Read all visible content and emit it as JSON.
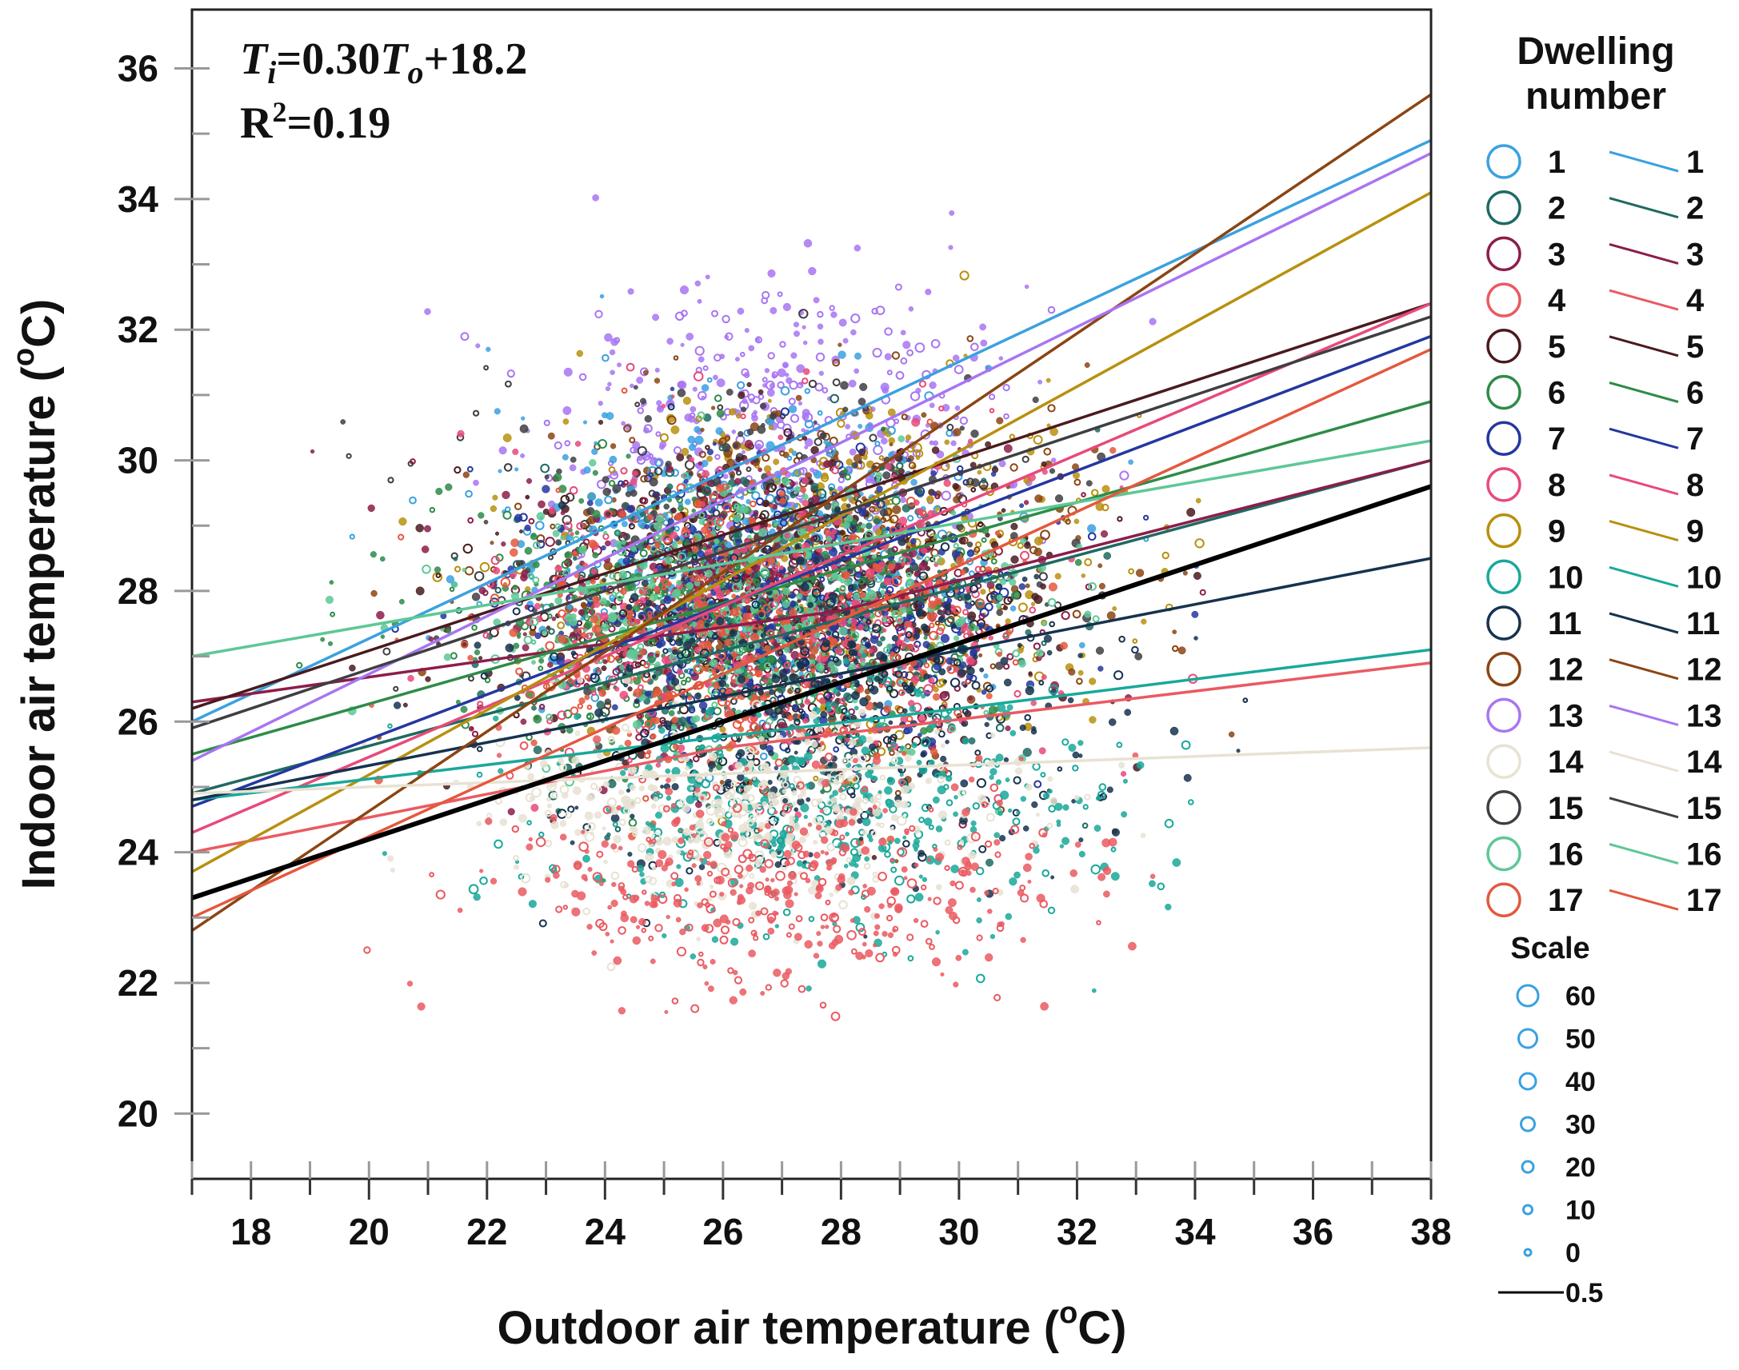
{
  "chart_data": {
    "type": "scatter",
    "title": "",
    "xlabel": "Outdoor air temperature (°C)",
    "xlabel_main": "Outdoor air temperature (",
    "xlabel_unit": "o",
    "xlabel_end": "C)",
    "ylabel": "Indoor air temperature (°C)",
    "ylabel_main": "Indoor air temperature (",
    "ylabel_unit": "o",
    "ylabel_end": "C)",
    "xlim": [
      17,
      38
    ],
    "ylim": [
      19,
      36.9
    ],
    "x_ticks": [
      18,
      20,
      22,
      24,
      26,
      28,
      30,
      32,
      34,
      36,
      38
    ],
    "y_ticks": [
      20,
      22,
      24,
      26,
      28,
      30,
      32,
      34,
      36
    ],
    "annotation": {
      "eq_T": "T",
      "eq_i": "i",
      "eq_mid": "=0.30",
      "eq_To": "T",
      "eq_o": "o",
      "eq_end": "+18.2",
      "r2_R": "R",
      "r2_sup": "2",
      "r2_val": "=0.19",
      "equation": "Ti=0.30To+18.2",
      "r_squared": "R2=0.19"
    },
    "overall_fit": {
      "slope": 0.3,
      "intercept": 18.2,
      "x_range": [
        17,
        38
      ],
      "color": "#000000"
    },
    "legend_title_line1": "Dwelling",
    "legend_title_line2": "number",
    "series": [
      {
        "name": "1",
        "color": "#3aa1e0",
        "fit": [
          [
            17,
            26.0
          ],
          [
            38,
            34.9
          ]
        ],
        "cloud": {
          "cx": 26.5,
          "cy": 28.6,
          "sx": 4.0,
          "sy": 1.8
        }
      },
      {
        "name": "2",
        "color": "#1e6a62",
        "fit": [
          [
            17,
            24.9
          ],
          [
            38,
            30.0
          ]
        ],
        "cloud": {
          "cx": 27.0,
          "cy": 27.4,
          "sx": 4.0,
          "sy": 2.0
        }
      },
      {
        "name": "3",
        "color": "#8c1d4a",
        "fit": [
          [
            17,
            26.3
          ],
          [
            28,
            27.7
          ],
          [
            38,
            30.0
          ]
        ],
        "cloud": {
          "cx": 26.5,
          "cy": 27.8,
          "sx": 4.2,
          "sy": 1.8
        }
      },
      {
        "name": "4",
        "color": "#ea5a62",
        "fit": [
          [
            17,
            24.0
          ],
          [
            26,
            25.6
          ],
          [
            38,
            26.9
          ]
        ],
        "cloud": {
          "cx": 27.0,
          "cy": 23.5,
          "sx": 4.5,
          "sy": 1.4
        }
      },
      {
        "name": "5",
        "color": "#4a1a1e",
        "fit": [
          [
            17,
            26.2
          ],
          [
            38,
            32.4
          ]
        ],
        "cloud": {
          "cx": 27.0,
          "cy": 27.8,
          "sx": 4.2,
          "sy": 2.0
        }
      },
      {
        "name": "6",
        "color": "#2e8b48",
        "fit": [
          [
            17,
            25.5
          ],
          [
            38,
            30.9
          ]
        ],
        "cloud": {
          "cx": 25.5,
          "cy": 27.6,
          "sx": 4.0,
          "sy": 1.9
        }
      },
      {
        "name": "7",
        "color": "#2437a0",
        "fit": [
          [
            17,
            24.7
          ],
          [
            38,
            31.9
          ]
        ],
        "cloud": {
          "cx": 27.0,
          "cy": 27.8,
          "sx": 4.0,
          "sy": 1.9
        }
      },
      {
        "name": "8",
        "color": "#e84a7a",
        "fit": [
          [
            17,
            24.3
          ],
          [
            38,
            32.4
          ]
        ],
        "cloud": {
          "cx": 27.0,
          "cy": 27.6,
          "sx": 4.0,
          "sy": 1.9
        }
      },
      {
        "name": "9",
        "color": "#b8900e",
        "fit": [
          [
            17,
            23.7
          ],
          [
            38,
            34.1
          ]
        ],
        "cloud": {
          "cx": 28.0,
          "cy": 28.6,
          "sx": 4.5,
          "sy": 2.2
        }
      },
      {
        "name": "10",
        "color": "#1aa89a",
        "fit": [
          [
            17,
            24.8
          ],
          [
            30,
            26.2
          ],
          [
            38,
            27.1
          ]
        ],
        "cloud": {
          "cx": 28.0,
          "cy": 24.6,
          "sx": 4.5,
          "sy": 1.6
        }
      },
      {
        "name": "11",
        "color": "#16324f",
        "fit": [
          [
            17,
            24.8
          ],
          [
            38,
            28.5
          ]
        ],
        "cloud": {
          "cx": 28.0,
          "cy": 26.2,
          "sx": 4.5,
          "sy": 2.0
        }
      },
      {
        "name": "12",
        "color": "#8b4513",
        "fit": [
          [
            17,
            22.8
          ],
          [
            38,
            35.6
          ]
        ],
        "cloud": {
          "cx": 27.5,
          "cy": 28.3,
          "sx": 4.5,
          "sy": 2.3
        }
      },
      {
        "name": "13",
        "color": "#a875f2",
        "fit": [
          [
            17,
            25.4
          ],
          [
            38,
            34.7
          ]
        ],
        "cloud": {
          "cx": 27.0,
          "cy": 30.6,
          "sx": 3.8,
          "sy": 1.9
        }
      },
      {
        "name": "14",
        "color": "#e8e2d2",
        "fit": [
          [
            17,
            24.9
          ],
          [
            38,
            25.6
          ]
        ],
        "cloud": {
          "cx": 26.5,
          "cy": 24.7,
          "sx": 4.0,
          "sy": 1.1
        }
      },
      {
        "name": "15",
        "color": "#3e3e44",
        "fit": [
          [
            17,
            25.9
          ],
          [
            38,
            32.2
          ]
        ],
        "cloud": {
          "cx": 26.5,
          "cy": 28.5,
          "sx": 4.2,
          "sy": 2.1
        }
      },
      {
        "name": "16",
        "color": "#5ec895",
        "fit": [
          [
            17,
            27.0
          ],
          [
            38,
            30.3
          ]
        ],
        "cloud": {
          "cx": 26.5,
          "cy": 27.8,
          "sx": 4.0,
          "sy": 1.7
        }
      },
      {
        "name": "17",
        "color": "#e4583e",
        "fit": [
          [
            17,
            23.0
          ],
          [
            38,
            31.7
          ]
        ],
        "cloud": {
          "cx": 26.5,
          "cy": 27.2,
          "sx": 4.0,
          "sy": 2.0
        }
      }
    ],
    "scale_title": "Scale",
    "scale_entries": [
      {
        "label": "60",
        "size": 60
      },
      {
        "label": "50",
        "size": 50
      },
      {
        "label": "40",
        "size": 40
      },
      {
        "label": "30",
        "size": 30
      },
      {
        "label": "20",
        "size": 20
      },
      {
        "label": "10",
        "size": 10
      },
      {
        "label": "0",
        "size": 0
      }
    ],
    "scale_line_label": "0.5",
    "scale_color": "#3aa1e0"
  }
}
